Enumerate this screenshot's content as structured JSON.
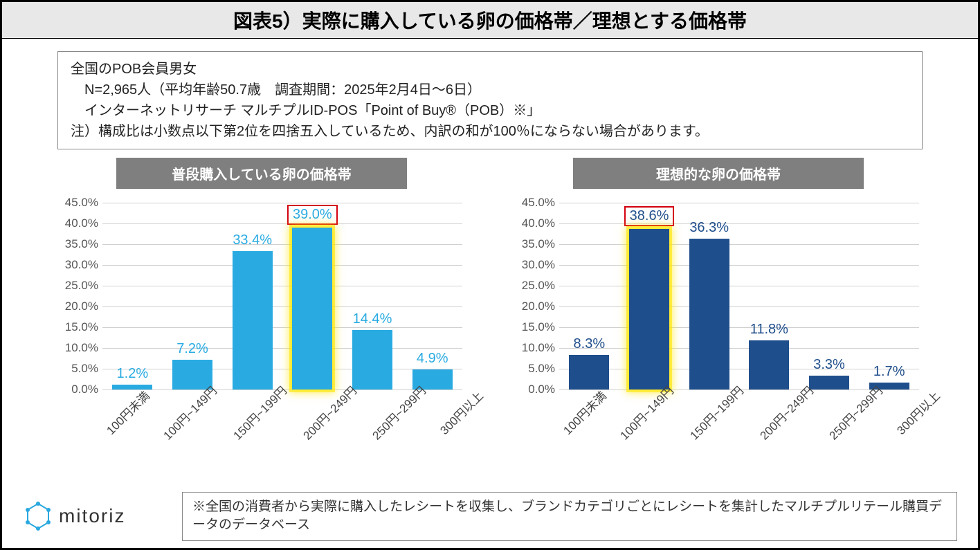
{
  "title": "図表5）実際に購入している卵の価格帯／理想とする価格帯",
  "info": {
    "line1": "全国のPOB会員男女",
    "line2": "　N=2,965人（平均年齢50.7歳　調査期間：2025年2月4日～6日）",
    "line3": "　インターネットリサーチ マルチプルID-POS「Point of Buy®（POB）※」",
    "line4": "注）構成比は小数点以下第2位を四捨五入しているため、内訳の和が100％にならない場合があります。"
  },
  "charts": {
    "ylim": [
      0,
      45
    ],
    "ytick_step": 5,
    "ytick_suffix": ".0%",
    "categories": [
      "100円未満",
      "100円~149円",
      "150円~199円",
      "200円~249円",
      "250円~299円",
      "300円以上"
    ],
    "left": {
      "type": "bar",
      "title": "普段購入している卵の価格帯",
      "bar_color": "#29abe2",
      "label_color": "#29abe2",
      "values": [
        1.2,
        7.2,
        33.4,
        39.0,
        14.4,
        4.9
      ],
      "value_labels": [
        "1.2%",
        "7.2%",
        "33.4%",
        "39.0%",
        "14.4%",
        "4.9%"
      ],
      "highlight_index": 3
    },
    "right": {
      "type": "bar",
      "title": "理想的な卵の価格帯",
      "bar_color": "#1f4e8c",
      "label_color": "#1f4e8c",
      "values": [
        8.3,
        38.6,
        36.3,
        11.8,
        3.3,
        1.7
      ],
      "value_labels": [
        "8.3%",
        "38.6%",
        "36.3%",
        "11.8%",
        "3.3%",
        "1.7%"
      ],
      "highlight_index": 1
    }
  },
  "logo": {
    "text": "mitoriz",
    "icon_color": "#2aa8e0"
  },
  "footnote": "※全国の消費者から実際に購入したレシートを収集し、ブランドカテゴリごとにレシートを集計したマルチプルリテール購買データのデータベース"
}
